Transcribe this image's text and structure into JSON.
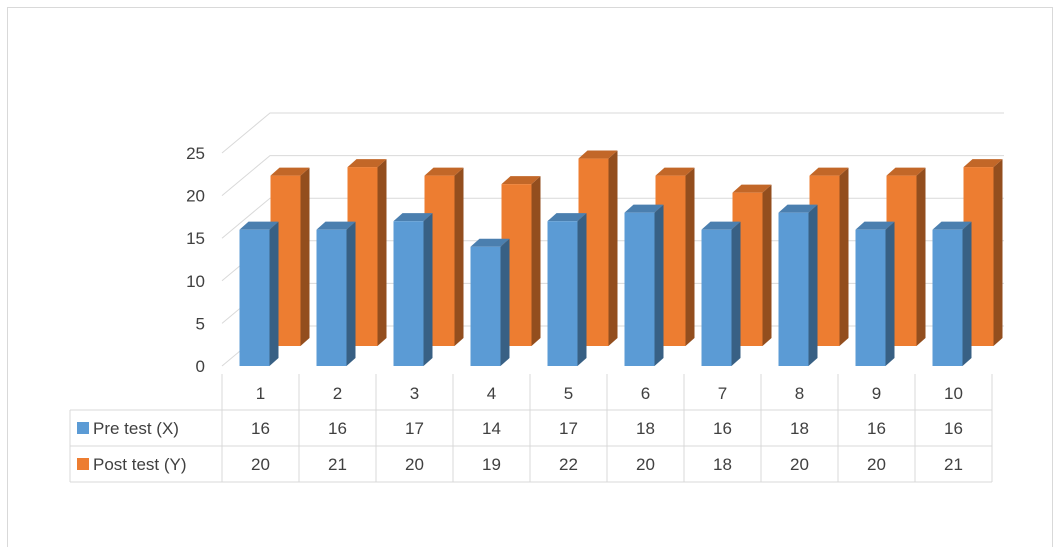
{
  "chart_data": {
    "type": "bar",
    "style": "3d-clustered-column-with-data-table",
    "title": "",
    "xlabel": "",
    "ylabel": "",
    "ylim": [
      0,
      25
    ],
    "yticks": [
      "0",
      "5",
      "10",
      "15",
      "20",
      "25"
    ],
    "grid": true,
    "categories": [
      "1",
      "2",
      "3",
      "4",
      "5",
      "6",
      "7",
      "8",
      "9",
      "10"
    ],
    "series": [
      {
        "name": "Pre test (X)",
        "color": "#5b9bd5",
        "values": [
          16,
          16,
          17,
          14,
          17,
          18,
          16,
          18,
          16,
          16
        ]
      },
      {
        "name": "Post test (Y)",
        "color": "#ed7d31",
        "values": [
          20,
          21,
          20,
          19,
          22,
          20,
          18,
          20,
          20,
          21
        ]
      }
    ]
  }
}
